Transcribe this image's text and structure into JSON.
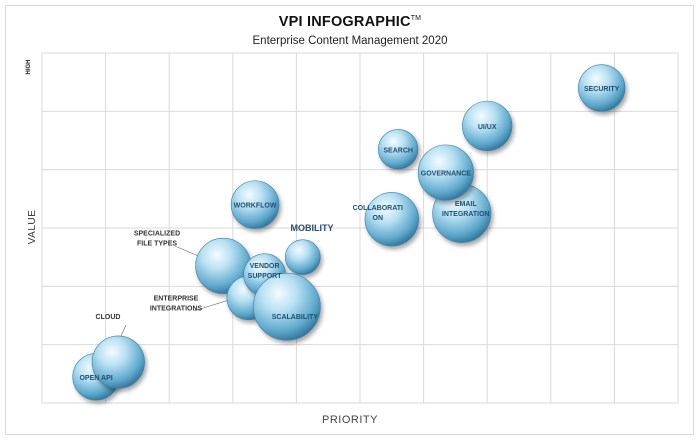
{
  "chart_data": {
    "type": "bubble",
    "title": "VPI INFOGRAPHIC",
    "title_mark": "TM",
    "subtitle": "Enterprise Content Management 2020",
    "xlabel": "PRIORITY",
    "ylabel": "VALUE",
    "y_high_label": "HIGH",
    "xlim": [
      0,
      10
    ],
    "ylim": [
      0,
      6
    ],
    "grid": true,
    "points": [
      {
        "label": "OPEN API",
        "x": 0.85,
        "y": 0.45,
        "r": 0.8
      },
      {
        "label": "CLOUD",
        "x": 1.2,
        "y": 0.7,
        "r": 0.9
      },
      {
        "label": "SPECIALIZED FILE TYPES",
        "x": 2.85,
        "y": 2.35,
        "r": 0.95
      },
      {
        "label": "ENTERPRISE INTEGRATIONS",
        "x": 3.25,
        "y": 1.8,
        "r": 0.75
      },
      {
        "label": "WORKFLOW",
        "x": 3.35,
        "y": 3.4,
        "r": 0.82
      },
      {
        "label": "VENDOR SUPPORT",
        "x": 3.5,
        "y": 2.2,
        "r": 0.72
      },
      {
        "label": "MOBILITY",
        "x": 4.1,
        "y": 2.5,
        "r": 0.6
      },
      {
        "label": "SCALABILITY",
        "x": 3.85,
        "y": 1.65,
        "r": 1.15
      },
      {
        "label": "SEARCH",
        "x": 5.6,
        "y": 4.35,
        "r": 0.68
      },
      {
        "label": "COLLABORATION",
        "x": 5.5,
        "y": 3.15,
        "r": 0.92
      },
      {
        "label": "EMAIL INTEGRATION",
        "x": 6.6,
        "y": 3.25,
        "r": 1.0
      },
      {
        "label": "GOVERNANCE",
        "x": 6.35,
        "y": 3.95,
        "r": 0.95
      },
      {
        "label": "UI/UX",
        "x": 7.0,
        "y": 4.75,
        "r": 0.85
      },
      {
        "label": "SECURITY",
        "x": 8.8,
        "y": 5.4,
        "r": 0.8
      }
    ]
  }
}
